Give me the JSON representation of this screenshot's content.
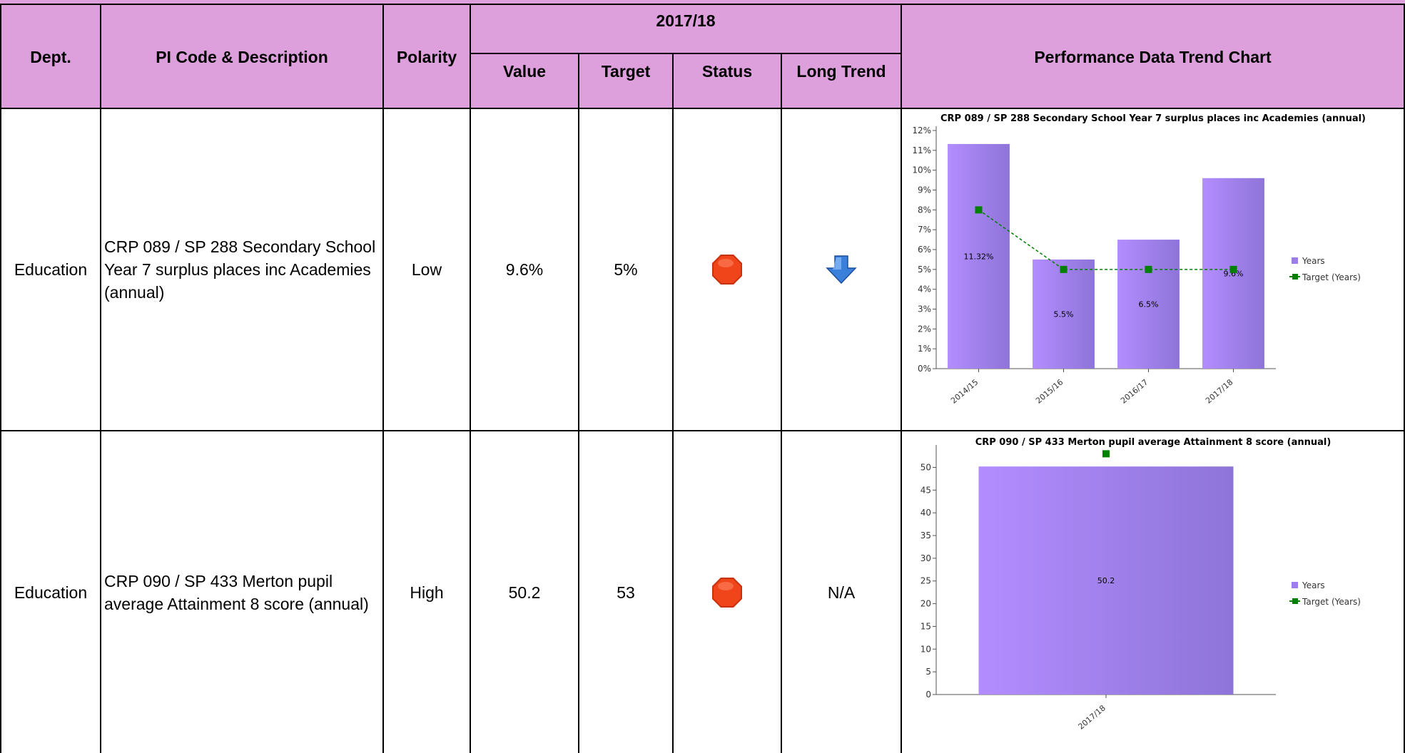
{
  "header": {
    "dept": "Dept.",
    "pi_code": "PI Code & Description",
    "polarity": "Polarity",
    "period": "2017/18",
    "value": "Value",
    "target": "Target",
    "status": "Status",
    "long_trend": "Long Trend",
    "chart": "Performance Data Trend Chart"
  },
  "rows": [
    {
      "dept": "Education",
      "description": "CRP 089 / SP 288 Secondary School Year 7 surplus places inc Academies (annual)",
      "polarity": "Low",
      "value": "9.6%",
      "target": "5%",
      "status_icon": "red-octagon-stop-icon",
      "trend_icon": "blue-down-arrow-icon",
      "trend_text": ""
    },
    {
      "dept": "Education",
      "description": "CRP 090 / SP 433 Merton pupil average Attainment 8 score (annual)",
      "polarity": "High",
      "value": "50.2",
      "target": "53",
      "status_icon": "red-octagon-stop-icon",
      "trend_icon": "",
      "trend_text": "N/A"
    }
  ],
  "colors": {
    "header_bg": "#dda0dd",
    "bar": "#9b7ee8",
    "target_line": "#008000",
    "status_red": "#f0441a",
    "trend_arrow": "#3a7fd9"
  },
  "chart_data": [
    {
      "type": "bar",
      "title": "CRP 089 / SP 288 Secondary School Year 7 surplus places inc Academies (annual)",
      "categories": [
        "2014/15",
        "2015/16",
        "2016/17",
        "2017/18"
      ],
      "series": [
        {
          "name": "Years",
          "type": "bar",
          "values": [
            11.32,
            5.5,
            6.5,
            9.6
          ]
        },
        {
          "name": "Target (Years)",
          "type": "line",
          "values": [
            8,
            5,
            5,
            5
          ]
        }
      ],
      "data_labels": [
        "11.32%",
        "5.5%",
        "6.5%",
        "9.6%"
      ],
      "yticks": [
        "0%",
        "1%",
        "2%",
        "3%",
        "4%",
        "5%",
        "6%",
        "7%",
        "8%",
        "9%",
        "10%",
        "11%",
        "12%"
      ],
      "ylim": [
        0,
        12
      ],
      "legend": "right"
    },
    {
      "type": "bar",
      "title": "CRP 090 / SP 433 Merton pupil average Attainment 8 score (annual)",
      "categories": [
        "2017/18"
      ],
      "series": [
        {
          "name": "Years",
          "type": "bar",
          "values": [
            50.2
          ]
        },
        {
          "name": "Target (Years)",
          "type": "line",
          "values": [
            53
          ]
        }
      ],
      "data_labels": [
        "50.2"
      ],
      "yticks": [
        "0",
        "5",
        "10",
        "15",
        "20",
        "25",
        "30",
        "35",
        "40",
        "45",
        "50"
      ],
      "ylim": [
        0,
        54
      ],
      "legend": "right"
    }
  ]
}
